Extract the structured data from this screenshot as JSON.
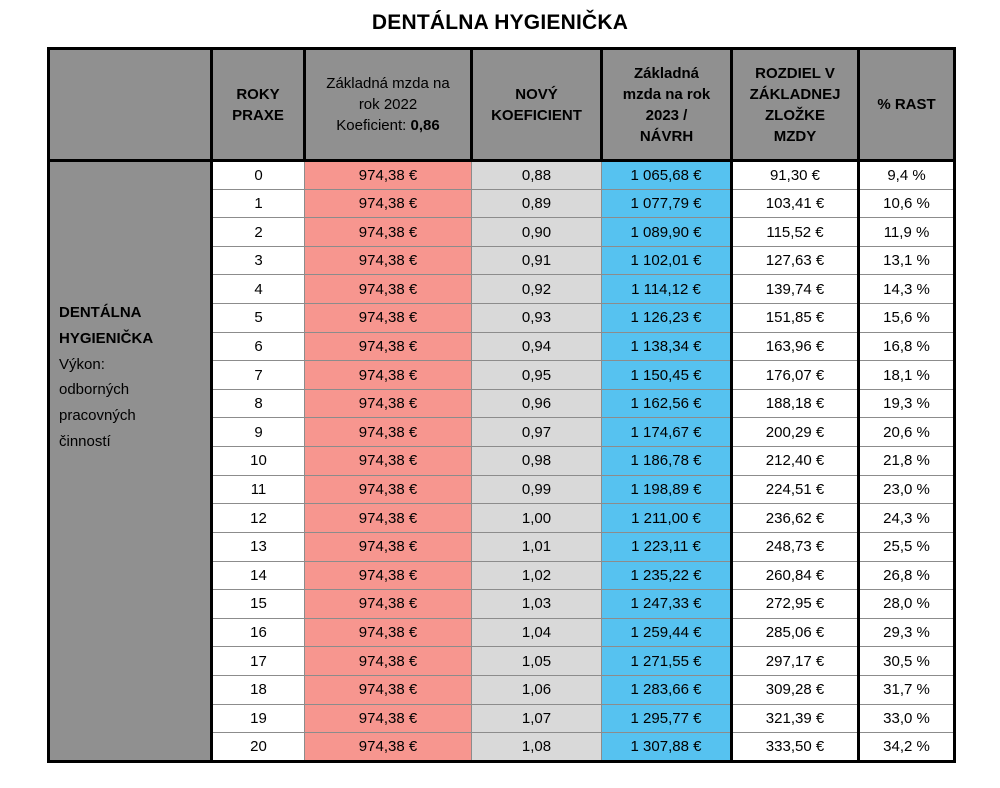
{
  "title": "DENTÁLNA HYGIENIČKA",
  "colors": {
    "header_gray": "#909090",
    "salary_2022_pink": "#f7968f",
    "coefficient_gray": "#d9d9d9",
    "salary_2023_blue": "#56c2f0",
    "thin_border": "#8c8c8c",
    "thick_border": "#000000"
  },
  "table": {
    "label": {
      "lines": [
        "DENTÁLNA",
        "HYGIENIČKA",
        "Výkon:",
        "odborných",
        "pracovných",
        "činností"
      ]
    },
    "headers": {
      "empty": "",
      "roky_praxe": [
        "ROKY",
        "PRAXE"
      ],
      "mzda_2022": {
        "lines": [
          "Základná mzda na",
          "rok 2022"
        ],
        "koef_label": "Koeficient: ",
        "koef_value": "0,86"
      },
      "novy_koeficient": [
        "NOVÝ",
        "KOEFICIENT"
      ],
      "mzda_2023": [
        "Základná",
        "mzda na rok",
        "2023  /",
        "NÁVRH"
      ],
      "rozdiel": [
        "ROZDIEL V",
        "ZÁKLADNEJ",
        "ZLOŽKE",
        "MZDY"
      ],
      "rast": [
        "% RAST"
      ]
    },
    "column_names": [
      "cell-roky-praxe",
      "cell-mzda-2022",
      "cell-novy-koeficient",
      "cell-mzda-2023",
      "cell-rozdiel-mzdy",
      "cell-percent-rast"
    ],
    "rows": [
      [
        "0",
        "974,38 €",
        "0,88",
        "1 065,68 €",
        "91,30 €",
        "9,4 %"
      ],
      [
        "1",
        "974,38 €",
        "0,89",
        "1 077,79 €",
        "103,41 €",
        "10,6 %"
      ],
      [
        "2",
        "974,38 €",
        "0,90",
        "1 089,90 €",
        "115,52 €",
        "11,9 %"
      ],
      [
        "3",
        "974,38 €",
        "0,91",
        "1 102,01 €",
        "127,63 €",
        "13,1 %"
      ],
      [
        "4",
        "974,38 €",
        "0,92",
        "1 114,12 €",
        "139,74 €",
        "14,3 %"
      ],
      [
        "5",
        "974,38 €",
        "0,93",
        "1 126,23 €",
        "151,85 €",
        "15,6 %"
      ],
      [
        "6",
        "974,38 €",
        "0,94",
        "1 138,34 €",
        "163,96 €",
        "16,8 %"
      ],
      [
        "7",
        "974,38 €",
        "0,95",
        "1 150,45 €",
        "176,07 €",
        "18,1 %"
      ],
      [
        "8",
        "974,38 €",
        "0,96",
        "1 162,56 €",
        "188,18 €",
        "19,3 %"
      ],
      [
        "9",
        "974,38 €",
        "0,97",
        "1 174,67 €",
        "200,29 €",
        "20,6 %"
      ],
      [
        "10",
        "974,38 €",
        "0,98",
        "1 186,78 €",
        "212,40 €",
        "21,8 %"
      ],
      [
        "11",
        "974,38 €",
        "0,99",
        "1 198,89 €",
        "224,51 €",
        "23,0 %"
      ],
      [
        "12",
        "974,38 €",
        "1,00",
        "1 211,00 €",
        "236,62 €",
        "24,3 %"
      ],
      [
        "13",
        "974,38 €",
        "1,01",
        "1 223,11 €",
        "248,73 €",
        "25,5 %"
      ],
      [
        "14",
        "974,38 €",
        "1,02",
        "1 235,22 €",
        "260,84 €",
        "26,8 %"
      ],
      [
        "15",
        "974,38 €",
        "1,03",
        "1 247,33 €",
        "272,95 €",
        "28,0 %"
      ],
      [
        "16",
        "974,38 €",
        "1,04",
        "1 259,44 €",
        "285,06 €",
        "29,3 %"
      ],
      [
        "17",
        "974,38 €",
        "1,05",
        "1 271,55 €",
        "297,17 €",
        "30,5 %"
      ],
      [
        "18",
        "974,38 €",
        "1,06",
        "1 283,66 €",
        "309,28 €",
        "31,7 %"
      ],
      [
        "19",
        "974,38 €",
        "1,07",
        "1 295,77 €",
        "321,39 €",
        "33,0 %"
      ],
      [
        "20",
        "974,38 €",
        "1,08",
        "1 307,88 €",
        "333,50 €",
        "34,2 %"
      ]
    ]
  }
}
